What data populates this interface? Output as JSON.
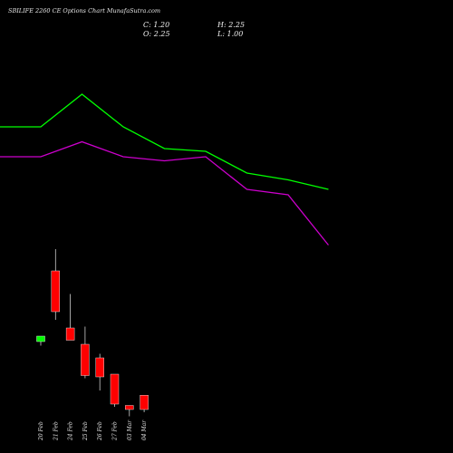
{
  "header": {
    "title": "SBILIFE 2260 CE Options Chart MunafaSutra.com",
    "close": "C: 1.20",
    "high": "H: 2.25",
    "open": "O: 2.25",
    "low": "L: 1.00"
  },
  "colors": {
    "background": "#000000",
    "up": "#00ff00",
    "down": "#ff0000",
    "line_green": "#00ff00",
    "line_magenta": "#cc00cc",
    "text": "#e6e6e6"
  },
  "chart_data": {
    "type": "candlestick",
    "title": "SBILIFE 2260 CE Options Chart MunafaSutra.com",
    "categories": [
      "20 Feb",
      "21 Feb",
      "24 Feb",
      "25 Feb",
      "26 Feb",
      "27 Feb",
      "03 Mar",
      "04 Mar"
    ],
    "candles": [
      {
        "date": "20 Feb",
        "open": 6.2,
        "high": 6.4,
        "low": 5.9,
        "close": 6.6,
        "dir": "up"
      },
      {
        "date": "21 Feb",
        "open": 11.4,
        "high": 13.0,
        "low": 7.8,
        "close": 8.4,
        "dir": "down"
      },
      {
        "date": "24 Feb",
        "open": 7.2,
        "high": 9.7,
        "low": 6.3,
        "close": 6.3,
        "dir": "down"
      },
      {
        "date": "25 Feb",
        "open": 6.0,
        "high": 7.3,
        "low": 3.5,
        "close": 3.7,
        "dir": "down"
      },
      {
        "date": "26 Feb",
        "open": 5.0,
        "high": 5.3,
        "low": 2.6,
        "close": 3.6,
        "dir": "down"
      },
      {
        "date": "27 Feb",
        "open": 3.8,
        "high": 3.8,
        "low": 1.4,
        "close": 1.6,
        "dir": "down"
      },
      {
        "date": "03 Mar",
        "open": 1.5,
        "high": 1.5,
        "low": 0.7,
        "close": 1.2,
        "dir": "down"
      },
      {
        "date": "04 Mar",
        "open": 2.25,
        "high": 2.25,
        "low": 1.0,
        "close": 1.2,
        "dir": "down"
      }
    ],
    "lines": [
      {
        "color": "green",
        "x": [
          -1,
          0,
          1,
          2,
          3,
          4,
          5,
          6,
          7
        ],
        "values": [
          22.0,
          22.0,
          24.4,
          22.0,
          20.4,
          20.2,
          18.6,
          18.1,
          17.4
        ]
      },
      {
        "color": "magenta",
        "x": [
          -1,
          0,
          1,
          2,
          3,
          4,
          5,
          6,
          7
        ],
        "values": [
          19.8,
          19.8,
          20.9,
          19.8,
          19.5,
          19.8,
          17.4,
          17.0,
          13.3
        ]
      }
    ],
    "ylim": [
      -2,
      30
    ],
    "grid": false
  }
}
